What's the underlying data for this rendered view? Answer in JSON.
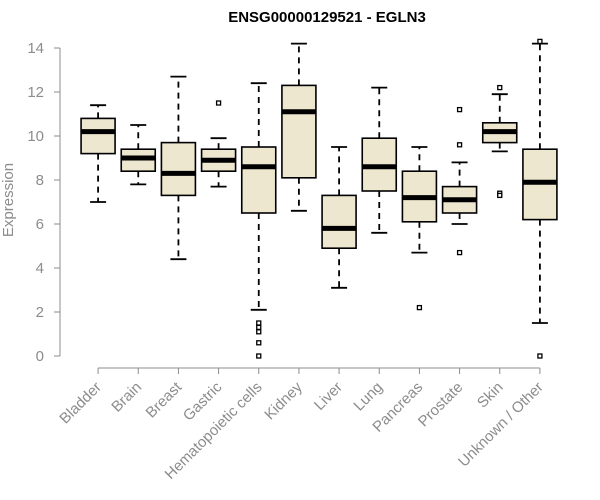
{
  "chart_data": {
    "type": "boxplot",
    "title": "ENSG00000129521 - EGLN3",
    "xlabel": "",
    "ylabel": "Expression",
    "ylim": [
      0,
      14
    ],
    "yticks": [
      0,
      2,
      4,
      6,
      8,
      10,
      12,
      14
    ],
    "box_color": "#ede7cf",
    "series": [
      {
        "name": "Bladder",
        "whislo": 7.0,
        "q1": 9.2,
        "med": 10.2,
        "q3": 10.8,
        "whishi": 11.4,
        "fliers": []
      },
      {
        "name": "Brain",
        "whislo": 7.8,
        "q1": 8.4,
        "med": 9.0,
        "q3": 9.4,
        "whishi": 10.5,
        "fliers": []
      },
      {
        "name": "Breast",
        "whislo": 4.4,
        "q1": 7.3,
        "med": 8.3,
        "q3": 9.7,
        "whishi": 12.7,
        "fliers": []
      },
      {
        "name": "Gastric",
        "whislo": 7.7,
        "q1": 8.4,
        "med": 8.9,
        "q3": 9.4,
        "whishi": 9.9,
        "fliers": [
          11.5
        ]
      },
      {
        "name": "Hematopoietic cells",
        "whislo": 2.1,
        "q1": 6.5,
        "med": 8.6,
        "q3": 9.5,
        "whishi": 12.4,
        "fliers": [
          1.5,
          1.3,
          1.1,
          0.6,
          0.0
        ]
      },
      {
        "name": "Kidney",
        "whislo": 6.6,
        "q1": 8.1,
        "med": 11.1,
        "q3": 12.3,
        "whishi": 14.2,
        "fliers": []
      },
      {
        "name": "Liver",
        "whislo": 3.1,
        "q1": 4.9,
        "med": 5.8,
        "q3": 7.3,
        "whishi": 9.5,
        "fliers": []
      },
      {
        "name": "Lung",
        "whislo": 5.6,
        "q1": 7.5,
        "med": 8.6,
        "q3": 9.9,
        "whishi": 12.2,
        "fliers": []
      },
      {
        "name": "Pancreas",
        "whislo": 4.7,
        "q1": 6.1,
        "med": 7.2,
        "q3": 8.4,
        "whishi": 9.5,
        "fliers": [
          2.2
        ]
      },
      {
        "name": "Prostate",
        "whislo": 6.0,
        "q1": 6.5,
        "med": 7.1,
        "q3": 7.7,
        "whishi": 8.8,
        "fliers": [
          9.6,
          11.2,
          4.7
        ]
      },
      {
        "name": "Skin",
        "whislo": 9.3,
        "q1": 9.7,
        "med": 10.2,
        "q3": 10.6,
        "whishi": 11.9,
        "fliers": [
          12.2,
          7.4,
          7.3
        ]
      },
      {
        "name": "Unknown / Other",
        "whislo": 1.5,
        "q1": 6.2,
        "med": 7.9,
        "q3": 9.4,
        "whishi": 14.2,
        "fliers": [
          14.3,
          0.0
        ]
      }
    ]
  }
}
